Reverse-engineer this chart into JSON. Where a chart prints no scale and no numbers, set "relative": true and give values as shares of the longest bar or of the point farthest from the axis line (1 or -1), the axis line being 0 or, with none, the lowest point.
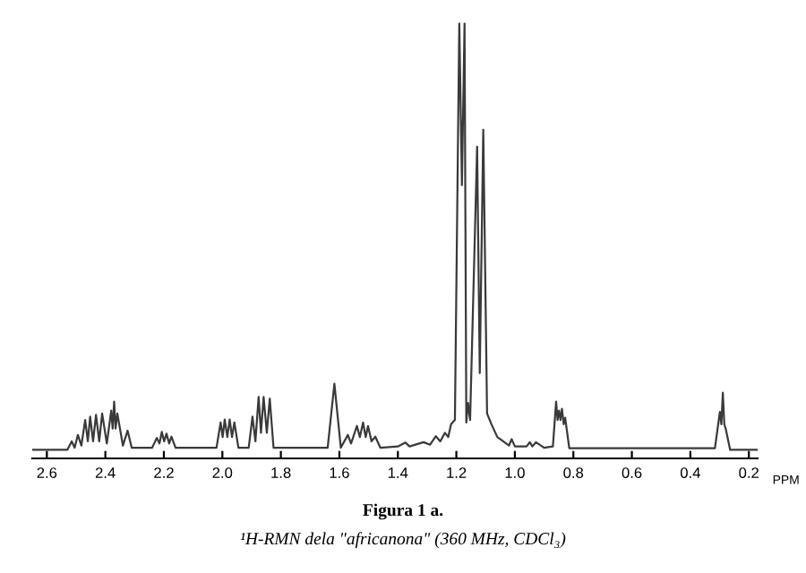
{
  "chart_data": {
    "type": "line",
    "relative": true,
    "title": "Figura 1 a.",
    "subtitle": "¹H-RMN dela \"africanona\" (360 MHz, CDCl₃)",
    "xlabel": "PPM",
    "xlim": [
      2.65,
      0.17
    ],
    "xticks": [
      2.6,
      2.4,
      2.2,
      {
        "value": 2,
        "label": "2.0"
      },
      1.8,
      1.6,
      1.4,
      1.2,
      {
        "value": 1,
        "label": "1.0"
      },
      0.8,
      0.6,
      0.4,
      0.2
    ],
    "tick_labels": "x",
    "grid": false,
    "series": [
      {
        "color": "#3a3a3a",
        "x": [
          2.65,
          2.53,
          2.515,
          2.505,
          2.494,
          2.482,
          2.469,
          2.46,
          2.452,
          2.442,
          2.432,
          2.421,
          2.411,
          2.395,
          2.38,
          2.375,
          2.37,
          2.365,
          2.359,
          2.34,
          2.324,
          2.31,
          2.24,
          2.224,
          2.215,
          2.207,
          2.199,
          2.191,
          2.182,
          2.174,
          2.16,
          2.02,
          2.006,
          1.999,
          1.992,
          1.983,
          1.975,
          1.967,
          1.959,
          1.945,
          1.91,
          1.897,
          1.887,
          1.876,
          1.868,
          1.859,
          1.848,
          1.838,
          1.825,
          1.64,
          1.617,
          1.595,
          1.571,
          1.56,
          1.54,
          1.53,
          1.519,
          1.51,
          1.502,
          1.49,
          1.477,
          1.46,
          1.4,
          1.374,
          1.36,
          1.312,
          1.29,
          1.27,
          1.255,
          1.239,
          1.228,
          1.218,
          1.205,
          1.19,
          1.181,
          1.172,
          1.166,
          1.16,
          1.153,
          1.129,
          1.12,
          1.108,
          1.095,
          1.08,
          1.06,
          1.02,
          1.011,
          1.0,
          0.96,
          0.949,
          0.94,
          0.928,
          0.9,
          0.87,
          0.859,
          0.854,
          0.849,
          0.844,
          0.839,
          0.833,
          0.828,
          0.814,
          0.316,
          0.299,
          0.294,
          0.289,
          0.284,
          0.279,
          0.264,
          0.17
        ],
        "values": [
          0,
          0,
          0.02,
          0.005,
          0.035,
          0.01,
          0.07,
          0.02,
          0.078,
          0.02,
          0.082,
          0.02,
          0.085,
          0.015,
          0.092,
          0.05,
          0.113,
          0.05,
          0.085,
          0.01,
          0.045,
          0.005,
          0.005,
          0.028,
          0.015,
          0.042,
          0.02,
          0.038,
          0.015,
          0.031,
          0.005,
          0.005,
          0.064,
          0.03,
          0.071,
          0.03,
          0.071,
          0.03,
          0.064,
          0.005,
          0.005,
          0.078,
          0.02,
          0.124,
          0.04,
          0.124,
          0.04,
          0.12,
          0.005,
          0.005,
          0.155,
          0.005,
          0.035,
          0.015,
          0.056,
          0.03,
          0.064,
          0.03,
          0.056,
          0.02,
          0.031,
          0.005,
          0.008,
          0.017,
          0.008,
          0.018,
          0.012,
          0.032,
          0.02,
          0.04,
          0.03,
          0.06,
          0.07,
          1.0,
          0.62,
          1.0,
          0.064,
          0.11,
          0.07,
          0.71,
          0.18,
          0.75,
          0.085,
          0.06,
          0.03,
          0.01,
          0.025,
          0.008,
          0.008,
          0.018,
          0.008,
          0.018,
          0.005,
          0.008,
          0.113,
          0.07,
          0.092,
          0.07,
          0.096,
          0.06,
          0.075,
          0.004,
          0.004,
          0.089,
          0.06,
          0.134,
          0.06,
          0.049,
          0,
          0
        ]
      }
    ]
  }
}
